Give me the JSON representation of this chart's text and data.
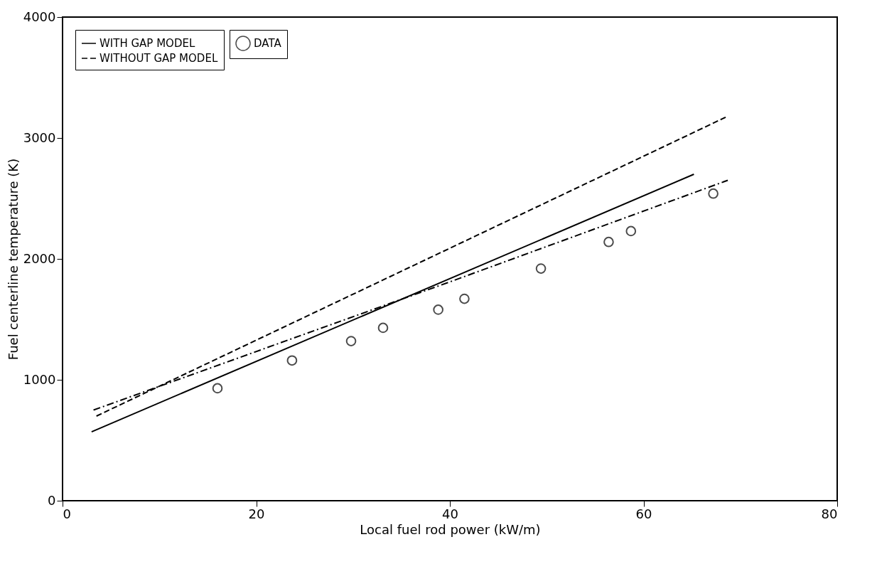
{
  "chart_data": {
    "type": "line",
    "xlabel": "Local fuel rod power (kW/m)",
    "ylabel": "Fuel centerline temperature (K)",
    "xlim": [
      0,
      80
    ],
    "xticks": [
      0,
      20,
      40,
      60,
      80
    ],
    "ylim": [
      0,
      4000
    ],
    "yticks": [
      0,
      1000,
      2000,
      3000,
      4000
    ],
    "grid": false,
    "legend": "top left",
    "series": [
      {
        "name": "WITH GAP MODEL",
        "color": "#000000",
        "line_style": "solid",
        "x": [
          3,
          65.2
        ],
        "values": [
          570,
          2700
        ]
      },
      {
        "name": "WITHOUT GAP MODEL",
        "color": "#000000",
        "line_style": "dashed",
        "x": [
          3.5,
          68.7
        ],
        "values": [
          700,
          3180
        ]
      },
      {
        "color": "#000000",
        "line_style": "dotted",
        "x": [
          3.2,
          40,
          68.7
        ],
        "values": [
          750,
          1810,
          2650
        ]
      },
      {
        "name": "DATA",
        "type": "scatter",
        "marker": "circle",
        "color": "#000000",
        "x": [
          16,
          23.7,
          29.8,
          33.1,
          38.8,
          41.5,
          49.4,
          56.4,
          58.7,
          67.2
        ],
        "values": [
          930,
          1160,
          1320,
          1430,
          1580,
          1670,
          1920,
          2140,
          2230,
          2540
        ]
      }
    ]
  }
}
